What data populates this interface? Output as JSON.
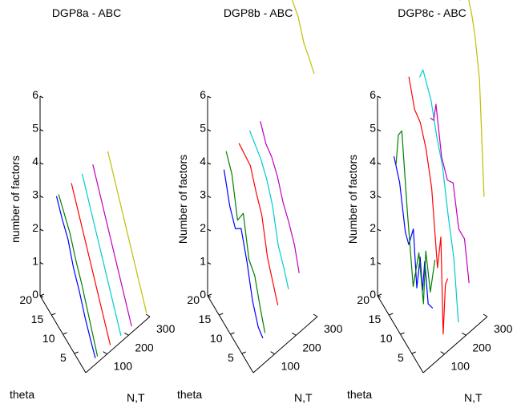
{
  "chart_data": [
    {
      "type": "line3d",
      "title": "DGP8a - ABC",
      "zlabel": "number of factors",
      "theta_label": "theta",
      "nt_label": "N,T",
      "z_ticks": [
        "0",
        "1",
        "2",
        "3",
        "4",
        "5",
        "6"
      ],
      "theta_ticks": [
        "5",
        "10",
        "15",
        "20"
      ],
      "nt_ticks": [
        "100",
        "200",
        "300"
      ],
      "zlim": [
        0,
        6
      ],
      "theta_lim": [
        0,
        20
      ],
      "nt_lim": [
        0,
        300
      ],
      "series": [
        {
          "color": "#0000ff",
          "points": [
            [
              50,
              17.5,
              3.0
            ],
            [
              50,
              15,
              2.6
            ],
            [
              50,
              12.5,
              2.3
            ],
            [
              50,
              10,
              1.7
            ],
            [
              50,
              7.5,
              1.3
            ],
            [
              50,
              5,
              0.8
            ],
            [
              50,
              2.5,
              0.4
            ],
            [
              50,
              0.5,
              0.1
            ]
          ]
        },
        {
          "color": "#008000",
          "points": [
            [
              60,
              17.5,
              3.0
            ],
            [
              60,
              15,
              2.7
            ],
            [
              60,
              12.5,
              2.4
            ],
            [
              60,
              10,
              1.9
            ],
            [
              60,
              7.5,
              1.5
            ],
            [
              60,
              5,
              1.0
            ],
            [
              60,
              2.5,
              0.5
            ],
            [
              60,
              0.5,
              0.1
            ]
          ]
        },
        {
          "color": "#ff0000",
          "points": [
            [
              120,
              17.5,
              3.0
            ],
            [
              120,
              0.5,
              0.1
            ]
          ]
        },
        {
          "color": "#00cccc",
          "points": [
            [
              170,
              17.5,
              3.0
            ],
            [
              170,
              0.5,
              0.1
            ]
          ]
        },
        {
          "color": "#bf00bf",
          "points": [
            [
              220,
              17.5,
              3.0
            ],
            [
              220,
              0.5,
              0.1
            ]
          ]
        },
        {
          "color": "#bfbf00",
          "points": [
            [
              290,
              17.5,
              3.0
            ],
            [
              290,
              0.5,
              0.1
            ]
          ]
        }
      ]
    },
    {
      "type": "line3d",
      "title": "DGP8b - ABC",
      "zlabel": "Number of factors",
      "theta_label": "theta",
      "nt_label": "N,T",
      "z_ticks": [
        "0",
        "1",
        "2",
        "3",
        "4",
        "5",
        "6"
      ],
      "theta_ticks": [
        "5",
        "10",
        "15",
        "20"
      ],
      "nt_ticks": [
        "100",
        "200",
        "300"
      ],
      "zlim": [
        0,
        6
      ],
      "theta_lim": [
        0,
        20
      ],
      "nt_lim": [
        0,
        300
      ],
      "series": [
        {
          "color": "#0000ff",
          "points": [
            [
              50,
              17.5,
              3.8
            ],
            [
              50,
              15,
              3.0
            ],
            [
              50,
              12.5,
              2.6
            ],
            [
              50,
              10,
              2.9
            ],
            [
              50,
              7.5,
              2.2
            ],
            [
              50,
              5,
              1.3
            ],
            [
              50,
              2.5,
              0.8
            ],
            [
              50,
              0.5,
              0.7
            ]
          ]
        },
        {
          "color": "#008000",
          "points": [
            [
              60,
              17.5,
              4.3
            ],
            [
              60,
              15,
              3.9
            ],
            [
              60,
              12.5,
              2.8
            ],
            [
              60,
              10,
              3.3
            ],
            [
              60,
              7.5,
              2.2
            ],
            [
              60,
              5,
              2.0
            ],
            [
              60,
              2.5,
              1.3
            ],
            [
              60,
              0.5,
              0.8
            ]
          ]
        },
        {
          "color": "#ff0000",
          "points": [
            [
              120,
              17.5,
              4.2
            ],
            [
              120,
              12.5,
              4.1
            ],
            [
              120,
              10,
              3.6
            ],
            [
              120,
              7.5,
              3.2
            ],
            [
              120,
              5,
              2.2
            ],
            [
              120,
              2.5,
              1.7
            ],
            [
              120,
              0.5,
              1.3
            ]
          ]
        },
        {
          "color": "#00cccc",
          "points": [
            [
              170,
              17.5,
              4.3
            ],
            [
              170,
              12.5,
              4.0
            ],
            [
              170,
              10,
              3.7
            ],
            [
              170,
              7.5,
              3.2
            ],
            [
              170,
              5,
              2.3
            ],
            [
              170,
              2.5,
              1.9
            ],
            [
              170,
              0.5,
              1.5
            ]
          ]
        },
        {
          "color": "#bf00bf",
          "points": [
            [
              220,
              17.5,
              4.3
            ],
            [
              220,
              15,
              3.9
            ],
            [
              220,
              12.5,
              3.8
            ],
            [
              220,
              10,
              3.5
            ],
            [
              220,
              7.5,
              3.0
            ],
            [
              220,
              5,
              2.7
            ],
            [
              220,
              2.5,
              2.3
            ],
            [
              220,
              0.5,
              1.7
            ]
          ]
        },
        {
          "color": "#bfbf00",
          "points": [
            [
              290,
              17.5,
              9.1
            ],
            [
              290,
              15,
              8.7
            ],
            [
              290,
              12.5,
              8.6
            ],
            [
              290,
              10,
              8.4
            ],
            [
              290,
              7.5,
              8.2
            ],
            [
              290,
              5,
              7.7
            ],
            [
              290,
              2.5,
              7.5
            ],
            [
              290,
              0.5,
              7.3
            ]
          ]
        }
      ]
    },
    {
      "type": "line3d",
      "title": "DGP8c - ABC",
      "zlabel": "Number of factors",
      "theta_label": "theta",
      "nt_label": "N,T",
      "z_ticks": [
        "0",
        "1",
        "2",
        "3",
        "4",
        "5",
        "6"
      ],
      "theta_ticks": [
        "5",
        "10",
        "15",
        "20"
      ],
      "nt_ticks": [
        "100",
        "200",
        "300"
      ],
      "zlim": [
        0,
        6
      ],
      "theta_lim": [
        0,
        20
      ],
      "nt_lim": [
        0,
        300
      ],
      "series": [
        {
          "color": "#0000ff",
          "points": [
            [
              50,
              17.5,
              4.2
            ],
            [
              50,
              15,
              3.7
            ],
            [
              50,
              12.5,
              2.5
            ],
            [
              50,
              11,
              2.3
            ],
            [
              50,
              9,
              3.0
            ],
            [
              50,
              7.5,
              1.4
            ],
            [
              50,
              6,
              2.5
            ],
            [
              50,
              5,
              1.6
            ],
            [
              50,
              4,
              2.6
            ],
            [
              50,
              2.5,
              1.5
            ],
            [
              50,
              0.5,
              1.6
            ]
          ]
        },
        {
          "color": "#008000",
          "points": [
            [
              60,
              17.5,
              3.9
            ],
            [
              60,
              16.5,
              4.9
            ],
            [
              60,
              15,
              5.2
            ],
            [
              60,
              12.5,
              3.0
            ],
            [
              60,
              10,
              1.1
            ],
            [
              60,
              7.5,
              2.4
            ],
            [
              60,
              5.5,
              1.1
            ],
            [
              60,
              4.5,
              2.8
            ],
            [
              60,
              2.5,
              1.8
            ],
            [
              60,
              0.5,
              3.0
            ]
          ]
        },
        {
          "color": "#ff0000",
          "points": [
            [
              120,
              17.5,
              6.2
            ],
            [
              120,
              15,
              5.5
            ],
            [
              120,
              12.5,
              5.4
            ],
            [
              120,
              10,
              4.9
            ],
            [
              120,
              7.5,
              4.0
            ],
            [
              120,
              5,
              1.9
            ],
            [
              120,
              3.5,
              3.0
            ],
            [
              120,
              2.5,
              0.2
            ],
            [
              120,
              1.5,
              1.8
            ],
            [
              120,
              0.5,
              2.1
            ]
          ]
        },
        {
          "color": "#00cccc",
          "points": [
            [
              170,
              17.5,
              5.9
            ],
            [
              170,
              16,
              6.3
            ],
            [
              170,
              12.5,
              5.8
            ],
            [
              170,
              10,
              5.0
            ],
            [
              170,
              7.5,
              4.4
            ],
            [
              170,
              5,
              3.2
            ],
            [
              170,
              2.5,
              2.2
            ],
            [
              170,
              0.5,
              0.5
            ]
          ]
        },
        {
          "color": "#bf00bf",
          "points": [
            [
              220,
              17.5,
              4.4
            ],
            [
              220,
              16,
              4.5
            ],
            [
              220,
              15,
              5.1
            ],
            [
              220,
              12.5,
              3.8
            ],
            [
              220,
              10,
              3.4
            ],
            [
              220,
              7.5,
              3.6
            ],
            [
              220,
              5,
              2.5
            ],
            [
              220,
              2.5,
              2.5
            ],
            [
              220,
              0.5,
              1.4
            ]
          ]
        },
        {
          "color": "#bfbf00",
          "points": [
            [
              290,
              17.5,
              9.3
            ],
            [
              290,
              16.5,
              9.5
            ],
            [
              290,
              15,
              9.3
            ],
            [
              290,
              12.5,
              9.2
            ],
            [
              290,
              11,
              8.3
            ],
            [
              290,
              9,
              9.0
            ],
            [
              290,
              7.5,
              8.8
            ],
            [
              290,
              6,
              8.5
            ],
            [
              290,
              4.5,
              8.0
            ],
            [
              290,
              2.5,
              6.9
            ],
            [
              290,
              0.5,
              3.6
            ]
          ]
        }
      ]
    }
  ]
}
